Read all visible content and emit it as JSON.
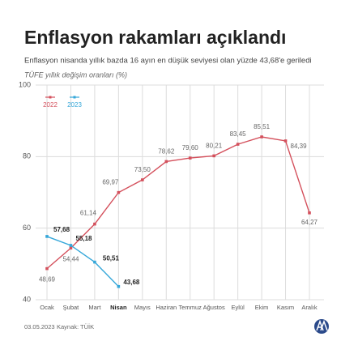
{
  "chart_data": {
    "type": "line",
    "title": "Enflasyon rakamları açıklandı",
    "subtitle": "Enflasyon nisanda yıllık bazda 16 ayın en düşük seviyesi olan yüzde 43,68'e geriledi",
    "y_label": "TÜFE yıllık değişim oranları (%)",
    "categories": [
      "Ocak",
      "Şubat",
      "Mart",
      "Nisan",
      "Mayıs",
      "Haziran",
      "Temmuz",
      "Ağustos",
      "Eylül",
      "Ekim",
      "Kasım",
      "Aralık"
    ],
    "series": [
      {
        "name": "2022",
        "color": "#d4505c",
        "values": [
          48.69,
          54.44,
          61.14,
          69.97,
          73.5,
          78.62,
          79.6,
          80.21,
          83.45,
          85.51,
          84.39,
          64.27
        ],
        "value_labels": [
          "48,69",
          "54,44",
          "61,14",
          "69,97",
          "73,50",
          "78,62",
          "79,60",
          "80,21",
          "83,45",
          "85,51",
          "84,39",
          "64,27"
        ]
      },
      {
        "name": "2023",
        "color": "#35a7d9",
        "values": [
          57.68,
          55.18,
          50.51,
          43.68,
          null,
          null,
          null,
          null,
          null,
          null,
          null,
          null
        ],
        "value_labels": [
          "57,68",
          "55,18",
          "50,51",
          "43,68",
          null,
          null,
          null,
          null,
          null,
          null,
          null,
          null
        ]
      }
    ],
    "ylim": [
      40,
      100
    ],
    "yticks": [
      40,
      60,
      80,
      100
    ],
    "grid": true,
    "legend": "top-left",
    "date": "03.05.2023",
    "source": "Kaynak: TÜİK"
  }
}
